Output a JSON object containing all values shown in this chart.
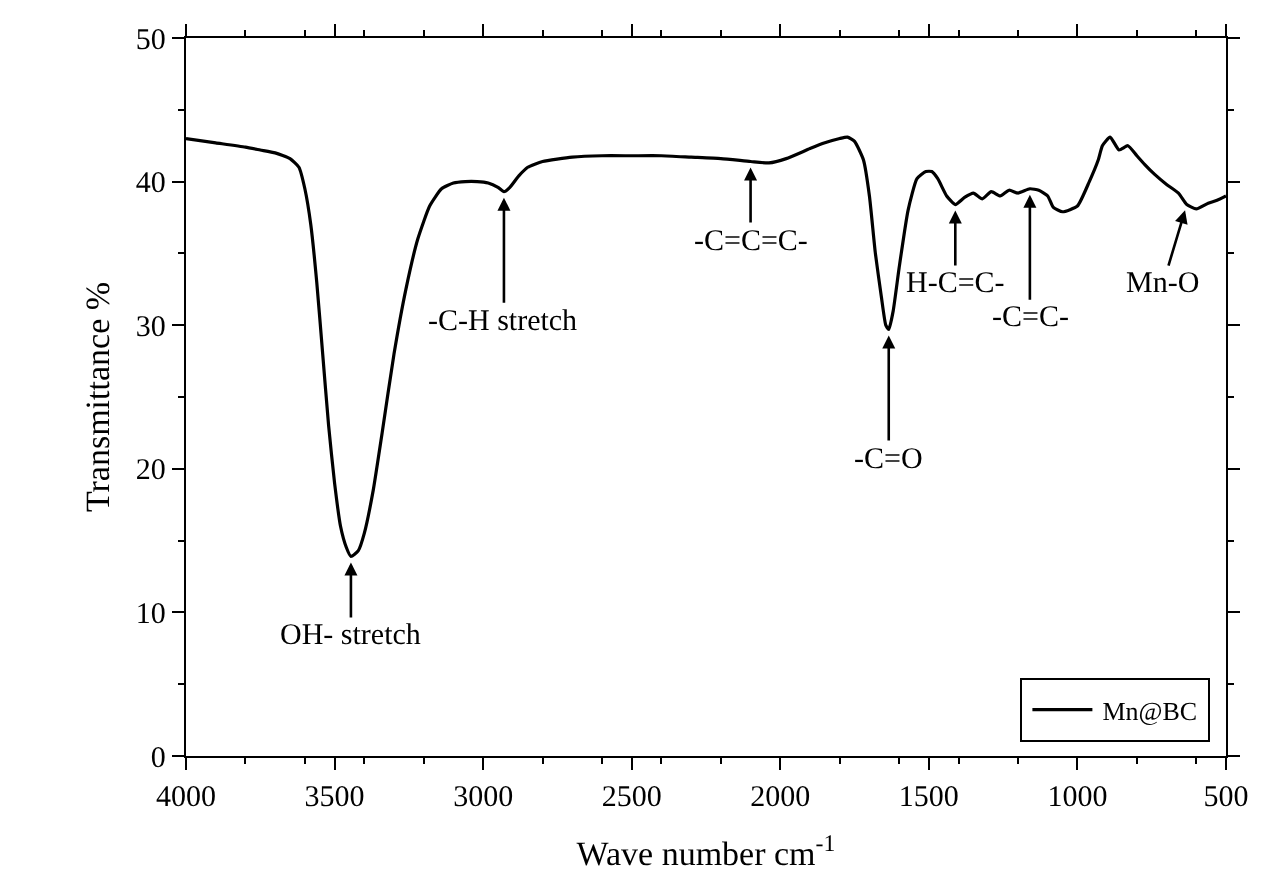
{
  "chart_data": {
    "type": "line",
    "xlabel": "Wave number cm$^{-1}$",
    "ylabel": "Transmittance %",
    "x": [
      4000,
      3900,
      3800,
      3750,
      3700,
      3650,
      3620,
      3600,
      3580,
      3560,
      3540,
      3520,
      3500,
      3480,
      3460,
      3445,
      3420,
      3400,
      3370,
      3340,
      3300,
      3260,
      3220,
      3180,
      3140,
      3100,
      3060,
      3020,
      2983,
      2950,
      2930,
      2910,
      2880,
      2850,
      2800,
      2700,
      2600,
      2500,
      2400,
      2300,
      2200,
      2100,
      2038,
      1980,
      1900,
      1850,
      1800,
      1774,
      1750,
      1720,
      1700,
      1680,
      1660,
      1645,
      1635,
      1620,
      1600,
      1570,
      1540,
      1510,
      1490,
      1470,
      1440,
      1411,
      1380,
      1350,
      1320,
      1290,
      1260,
      1230,
      1200,
      1160,
      1130,
      1100,
      1081,
      1050,
      1000,
      960,
      930,
      916,
      890,
      860,
      830,
      800,
      774,
      740,
      700,
      660,
      632,
      600,
      560,
      530,
      500
    ],
    "series": [
      {
        "name": "Mn@BC",
        "color": "#000000",
        "values": [
          43,
          42.7,
          42.4,
          42.2,
          42,
          41.6,
          41,
          39.5,
          37,
          33,
          28,
          23,
          19,
          16,
          14.5,
          13.9,
          14.3,
          15.5,
          18.5,
          22.5,
          28,
          32.5,
          36,
          38.3,
          39.5,
          39.9,
          40,
          40,
          39.9,
          39.6,
          39.3,
          39.6,
          40.4,
          41,
          41.4,
          41.7,
          41.8,
          41.8,
          41.8,
          41.7,
          41.6,
          41.4,
          41.3,
          41.6,
          42.3,
          42.7,
          43,
          43.1,
          42.8,
          41.5,
          39,
          35,
          32,
          30,
          29.7,
          31,
          34,
          38,
          40.2,
          40.7,
          40.7,
          40.2,
          39,
          38.4,
          38.9,
          39.2,
          38.8,
          39.3,
          39,
          39.4,
          39.2,
          39.5,
          39.4,
          39,
          38.2,
          37.9,
          38.3,
          40,
          41.5,
          42.5,
          43.1,
          42.2,
          42.5,
          41.8,
          41.2,
          40.5,
          39.8,
          39.2,
          38.4,
          38.1,
          38.5,
          38.7,
          39
        ]
      }
    ],
    "xlim": [
      4000,
      500
    ],
    "xticks": [
      4000,
      3500,
      3000,
      2500,
      2000,
      1500,
      1000,
      500
    ],
    "ylim": [
      0,
      50
    ],
    "yticks": [
      0,
      10,
      20,
      30,
      40,
      50
    ],
    "legend": "bottom right",
    "marker": "none",
    "line_style": "solid",
    "annotations": [
      {
        "text": "OH- stretch",
        "x": 3445,
        "y": 13.9
      },
      {
        "text": "-C-H stretch",
        "x": 2930,
        "y": 39.3
      },
      {
        "text": "-C=C=C-",
        "x": 2100,
        "y": 41.4
      },
      {
        "text": "-C=O",
        "x": 1635,
        "y": 29.7
      },
      {
        "text": "H-C=C-",
        "x": 1411,
        "y": 38.4
      },
      {
        "text": "-C=C-",
        "x": 1160,
        "y": 39.5
      },
      {
        "text": "Mn-O",
        "x": 632,
        "y": 38.4
      }
    ]
  }
}
